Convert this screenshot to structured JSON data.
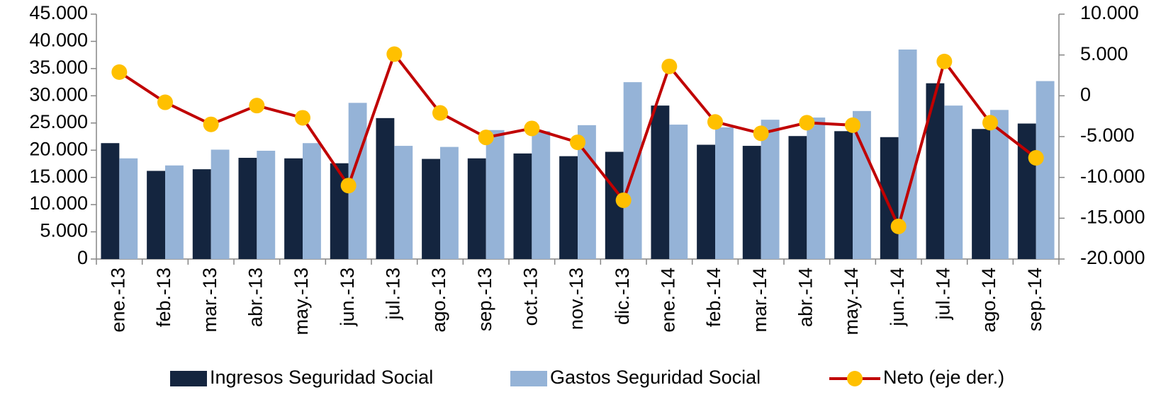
{
  "chart_data": {
    "type": "bar_line",
    "categories": [
      "ene.-13",
      "feb.-13",
      "mar.-13",
      "abr.-13",
      "may.-13",
      "jun.-13",
      "jul.-13",
      "ago.-13",
      "sep.-13",
      "oct.-13",
      "nov.-13",
      "dic.-13",
      "ene.-14",
      "feb.-14",
      "mar.-14",
      "abr.-14",
      "may.-14",
      "jun.-14",
      "jul.-14",
      "ago.-14",
      "sep.-14"
    ],
    "series": [
      {
        "name": "Ingresos Seguridad Social",
        "color": "#14253f",
        "kind": "bar",
        "values": [
          21300,
          16200,
          16500,
          18600,
          18500,
          17600,
          25900,
          18400,
          18500,
          19400,
          18900,
          19700,
          28200,
          21000,
          20800,
          22600,
          23500,
          22400,
          32300,
          23900,
          24900
        ]
      },
      {
        "name": "Gastos Seguridad Social",
        "color": "#95b3d7",
        "kind": "bar",
        "values": [
          18500,
          17200,
          20100,
          19900,
          21300,
          28700,
          20800,
          20600,
          23700,
          23500,
          24600,
          32500,
          24700,
          24200,
          25600,
          26000,
          27200,
          38500,
          28200,
          27400,
          32700
        ]
      },
      {
        "name": "Neto (eje der.)",
        "color": "#c00000",
        "marker_color": "#ffc000",
        "kind": "line",
        "axis": "y2",
        "values": [
          2900,
          -800,
          -3500,
          -1200,
          -2700,
          -11000,
          5100,
          -2100,
          -5100,
          -4000,
          -5700,
          -12800,
          3600,
          -3200,
          -4600,
          -3300,
          -3600,
          -16000,
          4200,
          -3300,
          -7600
        ]
      }
    ],
    "ylim": [
      0,
      45000
    ],
    "yticks": [
      0,
      {
        "value": 5000,
        "label": "5.000"
      },
      {
        "value": 10000,
        "label": "10.000"
      },
      {
        "value": 15000,
        "label": "15.000"
      },
      {
        "value": 20000,
        "label": "20.000"
      },
      {
        "value": 25000,
        "label": "25.000"
      },
      {
        "value": 30000,
        "label": "30.000"
      },
      {
        "value": 35000,
        "label": "35.000"
      },
      {
        "value": 40000,
        "label": "40.000"
      },
      {
        "value": 45000,
        "label": "45.000"
      }
    ],
    "y2lim": [
      -20000,
      10000
    ],
    "y2ticks": [
      {
        "value": -20000,
        "label": "-20.000"
      },
      {
        "value": -15000,
        "label": "-15.000"
      },
      {
        "value": -10000,
        "label": "-10.000"
      },
      {
        "value": -5000,
        "label": "-5.000"
      },
      0,
      {
        "value": 5000,
        "label": "5.000"
      },
      {
        "value": 10000,
        "label": "10.000"
      }
    ],
    "legend": "bottom"
  }
}
